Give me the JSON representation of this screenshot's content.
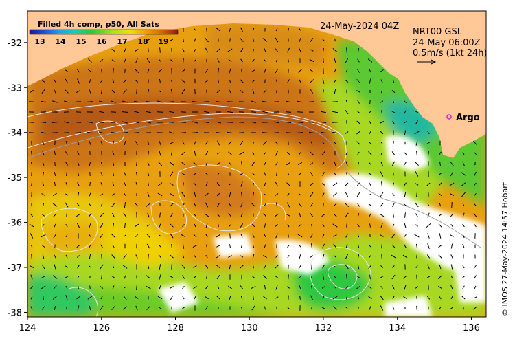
{
  "colorbar": {
    "title": "Filled 4h comp, p50, All Sats",
    "ticks": [
      "13",
      "14",
      "15",
      "16",
      "17",
      "18",
      "19"
    ],
    "min": 12.5,
    "max": 19.7,
    "colors": [
      "#1a1a8c",
      "#1e50d8",
      "#21a0e8",
      "#20c8b0",
      "#2ec832",
      "#a8e020",
      "#f0e000",
      "#f0a000",
      "#d87000",
      "#b04010",
      "#8c1a10"
    ]
  },
  "header": {
    "date": "24-May-2024 04Z",
    "product": "NRT00 GSL",
    "current_time": "24-May 06:00Z",
    "scale_label": "0.5m/s (1kt 24h)"
  },
  "float": {
    "label": "Argo",
    "lon": 135.5,
    "lat": -33.6,
    "color": "#e020c0"
  },
  "axes": {
    "x_ticks": [
      "124",
      "126",
      "128",
      "130",
      "132",
      "134",
      "136"
    ],
    "y_ticks": [
      "-32",
      "-33",
      "-34",
      "-35",
      "-36",
      "-37",
      "-38"
    ],
    "lon_range": [
      124,
      136.4
    ],
    "lat_range": [
      -38.1,
      -31.3
    ]
  },
  "credit": "© IMOS 27-May-2024 14:57 Hobart",
  "colors": {
    "land": "#ffc896",
    "cloud": "#ffffff",
    "warm": "#c86414",
    "mid": "#f0a000",
    "cool": "#7ed220",
    "cold": "#1fc850",
    "contour": "#e0e0e0"
  }
}
